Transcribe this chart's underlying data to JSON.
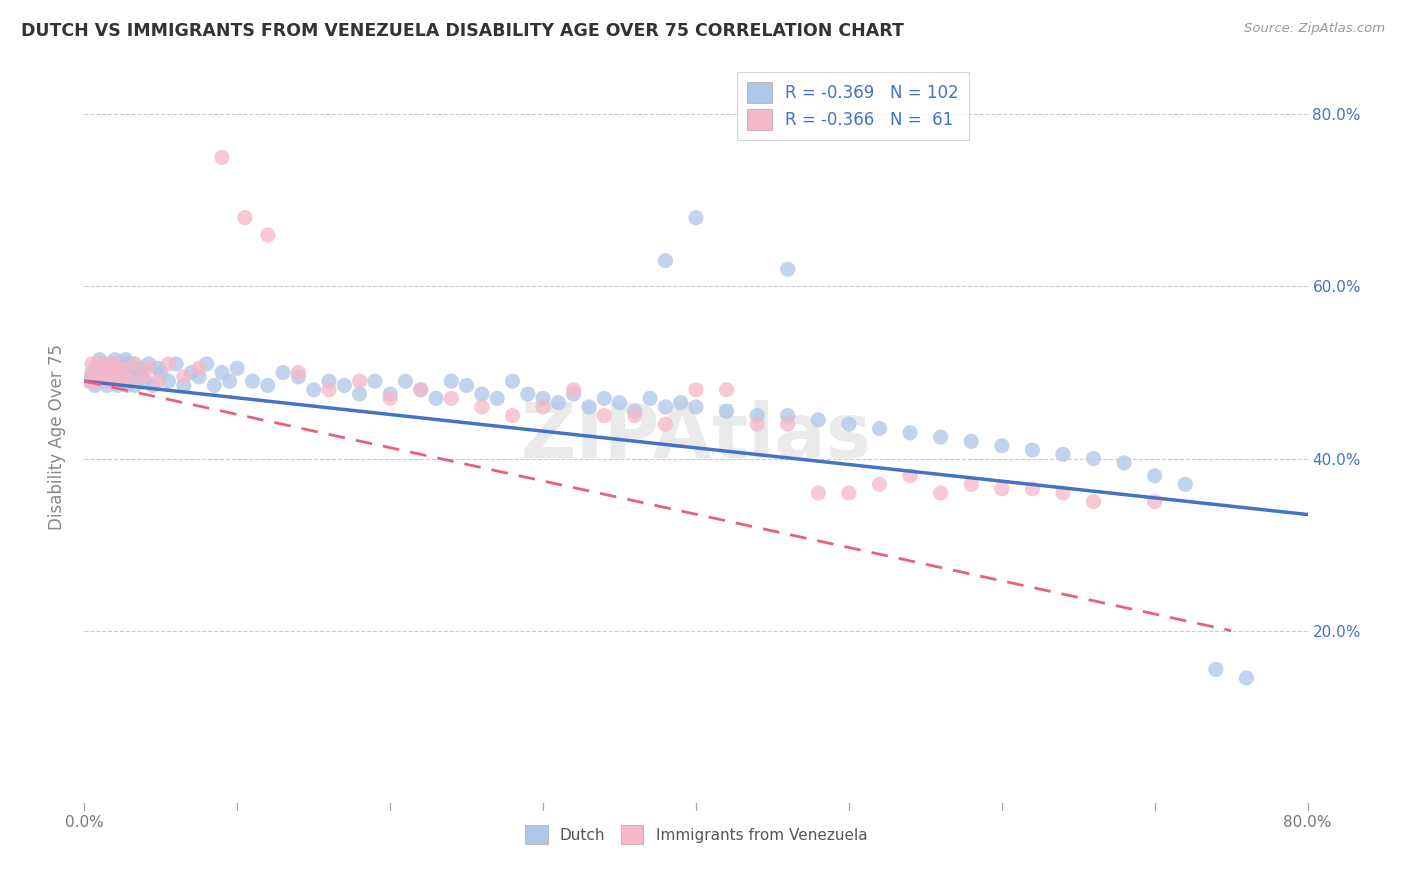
{
  "title": "DUTCH VS IMMIGRANTS FROM VENEZUELA DISABILITY AGE OVER 75 CORRELATION CHART",
  "source": "Source: ZipAtlas.com",
  "ylabel": "Disability Age Over 75",
  "xlim": [
    0.0,
    0.8
  ],
  "ylim": [
    0.0,
    0.85
  ],
  "dutch_color": "#aec6e8",
  "dutch_color_dark": "#4472c4",
  "venezuela_color": "#f4b8c8",
  "venezuela_color_dark": "#e8607a",
  "dutch_R": -0.369,
  "dutch_N": 102,
  "venezuela_R": -0.366,
  "venezuela_N": 61,
  "legend_label_dutch": "Dutch",
  "legend_label_venezuela": "Immigrants from Venezuela",
  "watermark": "ZIPAtlas",
  "dutch_line_start_y": 0.49,
  "dutch_line_end_y": 0.335,
  "venezuela_line_start_y": 0.49,
  "venezuela_line_end_y": 0.2,
  "dutch_x": [
    0.003,
    0.005,
    0.006,
    0.007,
    0.008,
    0.009,
    0.01,
    0.01,
    0.011,
    0.012,
    0.013,
    0.014,
    0.015,
    0.015,
    0.016,
    0.017,
    0.018,
    0.018,
    0.019,
    0.02,
    0.021,
    0.022,
    0.023,
    0.024,
    0.025,
    0.025,
    0.026,
    0.027,
    0.028,
    0.028,
    0.03,
    0.032,
    0.033,
    0.035,
    0.036,
    0.038,
    0.04,
    0.042,
    0.045,
    0.048,
    0.05,
    0.055,
    0.06,
    0.065,
    0.07,
    0.075,
    0.08,
    0.085,
    0.09,
    0.095,
    0.1,
    0.11,
    0.12,
    0.13,
    0.14,
    0.15,
    0.16,
    0.17,
    0.18,
    0.19,
    0.2,
    0.21,
    0.22,
    0.23,
    0.24,
    0.25,
    0.26,
    0.27,
    0.28,
    0.29,
    0.3,
    0.31,
    0.32,
    0.33,
    0.34,
    0.35,
    0.36,
    0.37,
    0.38,
    0.39,
    0.4,
    0.42,
    0.44,
    0.46,
    0.48,
    0.5,
    0.52,
    0.54,
    0.56,
    0.58,
    0.6,
    0.62,
    0.64,
    0.66,
    0.68,
    0.7,
    0.72,
    0.74,
    0.76,
    0.4,
    0.46,
    0.38
  ],
  "dutch_y": [
    0.49,
    0.5,
    0.495,
    0.485,
    0.505,
    0.51,
    0.495,
    0.515,
    0.5,
    0.49,
    0.51,
    0.495,
    0.505,
    0.485,
    0.5,
    0.51,
    0.49,
    0.505,
    0.495,
    0.515,
    0.5,
    0.485,
    0.51,
    0.495,
    0.505,
    0.49,
    0.5,
    0.515,
    0.485,
    0.51,
    0.495,
    0.51,
    0.485,
    0.5,
    0.495,
    0.505,
    0.49,
    0.51,
    0.485,
    0.505,
    0.5,
    0.49,
    0.51,
    0.485,
    0.5,
    0.495,
    0.51,
    0.485,
    0.5,
    0.49,
    0.505,
    0.49,
    0.485,
    0.5,
    0.495,
    0.48,
    0.49,
    0.485,
    0.475,
    0.49,
    0.475,
    0.49,
    0.48,
    0.47,
    0.49,
    0.485,
    0.475,
    0.47,
    0.49,
    0.475,
    0.47,
    0.465,
    0.475,
    0.46,
    0.47,
    0.465,
    0.455,
    0.47,
    0.46,
    0.465,
    0.46,
    0.455,
    0.45,
    0.45,
    0.445,
    0.44,
    0.435,
    0.43,
    0.425,
    0.42,
    0.415,
    0.41,
    0.405,
    0.4,
    0.395,
    0.38,
    0.37,
    0.155,
    0.145,
    0.68,
    0.62,
    0.63
  ],
  "venezuela_x": [
    0.003,
    0.005,
    0.006,
    0.007,
    0.008,
    0.009,
    0.01,
    0.011,
    0.012,
    0.013,
    0.014,
    0.015,
    0.016,
    0.017,
    0.018,
    0.019,
    0.02,
    0.021,
    0.022,
    0.023,
    0.025,
    0.027,
    0.03,
    0.033,
    0.038,
    0.042,
    0.048,
    0.055,
    0.065,
    0.075,
    0.09,
    0.105,
    0.12,
    0.14,
    0.16,
    0.18,
    0.2,
    0.22,
    0.24,
    0.26,
    0.28,
    0.3,
    0.32,
    0.34,
    0.36,
    0.38,
    0.4,
    0.42,
    0.44,
    0.46,
    0.48,
    0.5,
    0.52,
    0.54,
    0.56,
    0.58,
    0.6,
    0.62,
    0.64,
    0.66,
    0.7
  ],
  "venezuela_y": [
    0.49,
    0.51,
    0.5,
    0.49,
    0.51,
    0.495,
    0.505,
    0.49,
    0.51,
    0.495,
    0.505,
    0.49,
    0.51,
    0.495,
    0.505,
    0.49,
    0.51,
    0.495,
    0.505,
    0.49,
    0.495,
    0.505,
    0.49,
    0.51,
    0.495,
    0.505,
    0.49,
    0.51,
    0.495,
    0.505,
    0.75,
    0.68,
    0.66,
    0.5,
    0.48,
    0.49,
    0.47,
    0.48,
    0.47,
    0.46,
    0.45,
    0.46,
    0.48,
    0.45,
    0.45,
    0.44,
    0.48,
    0.48,
    0.44,
    0.44,
    0.36,
    0.36,
    0.37,
    0.38,
    0.36,
    0.37,
    0.365,
    0.365,
    0.36,
    0.35,
    0.35
  ]
}
